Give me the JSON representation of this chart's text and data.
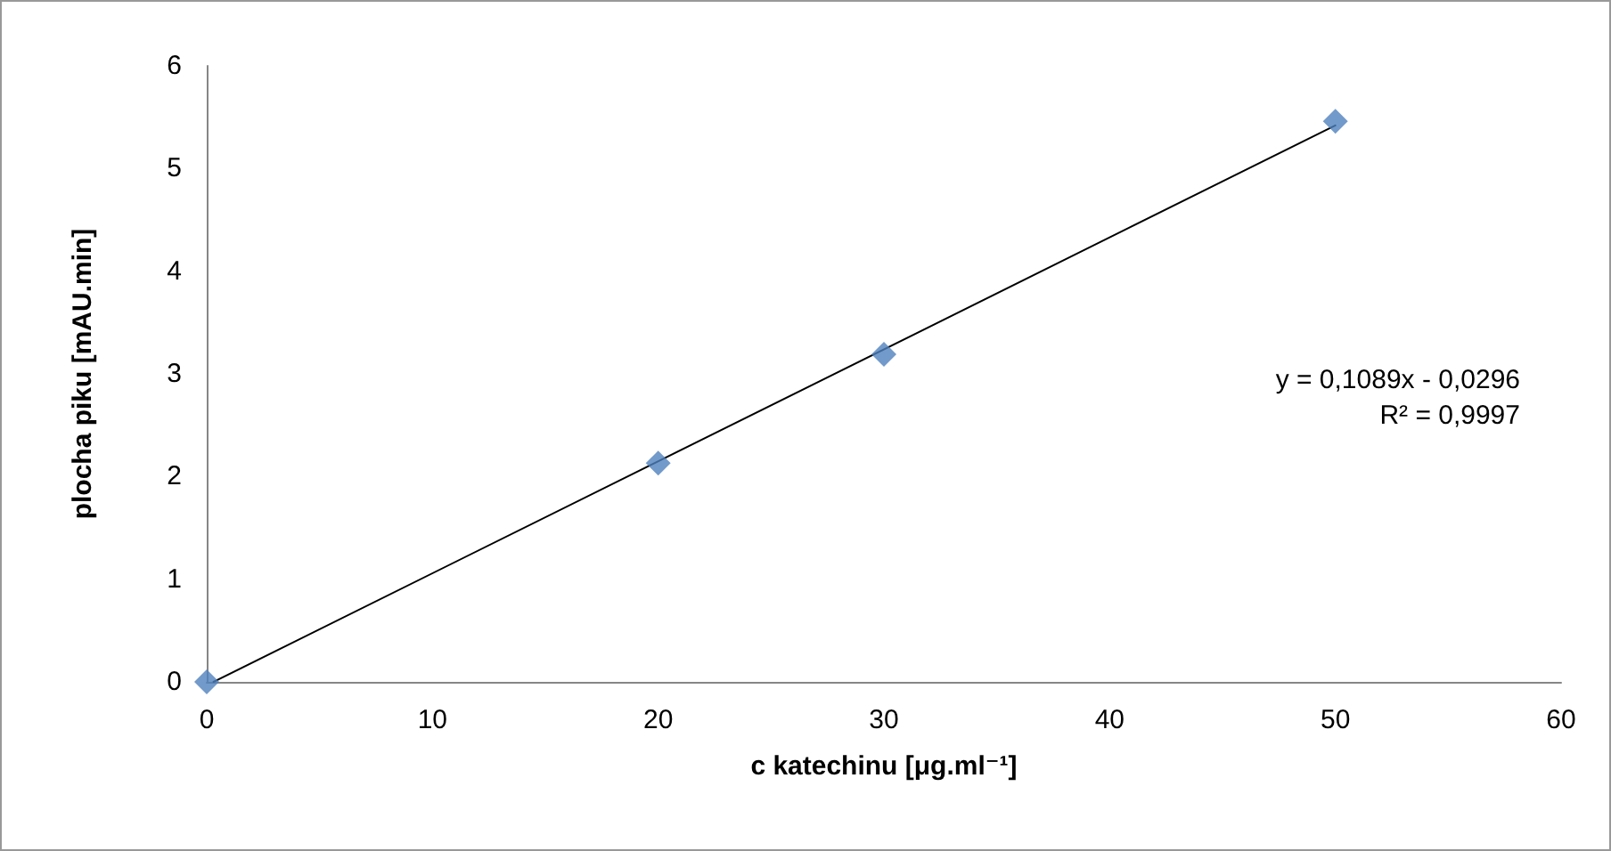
{
  "chart_data": {
    "type": "scatter",
    "xlabel": "c katechinu [μg.ml⁻¹]",
    "ylabel": "plocha piku [mAU.min]",
    "x": [
      0,
      20,
      30,
      50
    ],
    "series": [
      {
        "type": "scatter",
        "color": "#4f81bd",
        "marker": "diamond",
        "values": [
          0,
          2.13,
          3.19,
          5.46
        ]
      },
      {
        "type": "line",
        "color": "#000000",
        "marker": "none",
        "x": [
          0.3,
          50
        ],
        "values": [
          0,
          5.42
        ]
      }
    ],
    "xlim": [
      0,
      60
    ],
    "xticks": [
      0,
      10,
      20,
      30,
      40,
      50,
      60
    ],
    "ylim": [
      0,
      6
    ],
    "yticks": [
      0,
      1,
      2,
      3,
      4,
      5,
      6
    ],
    "grid": false,
    "annotations": [
      "y = 0,1089x - 0,0296",
      "R² = 0,9997"
    ]
  }
}
